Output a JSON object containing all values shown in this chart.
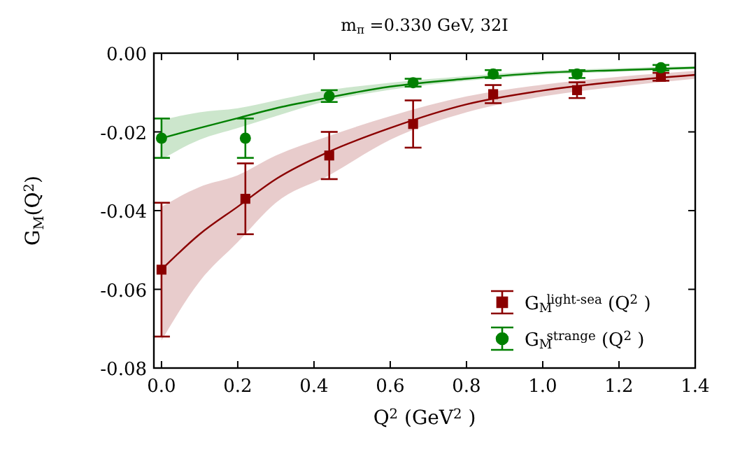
{
  "chart_data": {
    "type": "scatter",
    "title": "m$_{π}$ =0.330 GeV, 32I",
    "xlabel": "Q$^{2}$ (GeV$^{2}$ )",
    "ylabel": "G$_{M}$(Q$^{2}$)",
    "xlim": [
      -0.02,
      1.4
    ],
    "ylim": [
      -0.08,
      0.0
    ],
    "xticks": [
      {
        "value": 0,
        "label": "0.0"
      },
      0.2,
      0.4,
      0.6,
      0.8,
      {
        "value": 1,
        "label": "1.0"
      },
      1.2,
      1.4
    ],
    "yticks": [
      -0.08,
      -0.06,
      -0.04,
      -0.02,
      {
        "value": 0,
        "label": "0.00"
      }
    ],
    "legend": "bottom right",
    "grid": false,
    "series": [
      {
        "type": "line",
        "color": "#8b0000",
        "marker": "none",
        "x": [
          0,
          0.1,
          0.2,
          0.3,
          0.44,
          0.6,
          0.8,
          1.0,
          1.2,
          1.4
        ],
        "values": [
          -0.055,
          -0.046,
          -0.039,
          -0.032,
          -0.025,
          -0.019,
          -0.013,
          -0.0095,
          -0.0072,
          -0.0055
        ],
        "lower": [
          -0.073,
          -0.058,
          -0.048,
          -0.038,
          -0.031,
          -0.022,
          -0.015,
          -0.011,
          -0.0085,
          -0.0065
        ],
        "upper": [
          -0.039,
          -0.034,
          -0.031,
          -0.026,
          -0.021,
          -0.016,
          -0.011,
          -0.008,
          -0.006,
          -0.0045
        ]
      },
      {
        "type": "line",
        "color": "#008000",
        "marker": "none",
        "x": [
          0,
          0.1,
          0.2,
          0.3,
          0.4,
          0.6,
          0.8,
          1.0,
          1.2,
          1.4
        ],
        "values": [
          -0.0216,
          -0.019,
          -0.0165,
          -0.014,
          -0.012,
          -0.0085,
          -0.0065,
          -0.005,
          -0.0043,
          -0.0037
        ],
        "lower": [
          -0.027,
          -0.022,
          -0.019,
          -0.016,
          -0.013,
          -0.0093,
          -0.007,
          -0.0055,
          -0.0047,
          -0.004
        ],
        "upper": [
          -0.017,
          -0.015,
          -0.014,
          -0.012,
          -0.01,
          -0.0075,
          -0.0058,
          -0.0045,
          -0.0038,
          -0.0033
        ]
      },
      {
        "name": "G$_{M}$$^{light-sea}$ (Q$^{2}$ )",
        "color": "#8b0000",
        "marker": "square",
        "x": [
          0,
          0.22,
          0.44,
          0.66,
          0.87,
          1.09,
          1.31
        ],
        "values": [
          -0.055,
          -0.037,
          -0.026,
          -0.018,
          -0.0104,
          -0.0094,
          -0.006
        ],
        "errors": [
          0.017,
          0.009,
          0.006,
          0.006,
          0.0023,
          0.002,
          0.001
        ]
      },
      {
        "name": "G$_{M}$$^{strange}$ (Q$^{2}$ )",
        "color": "#008000",
        "marker": "circle",
        "x": [
          0,
          0.22,
          0.44,
          0.66,
          0.87,
          1.09,
          1.31
        ],
        "values": [
          -0.0216,
          -0.0216,
          -0.0109,
          -0.0075,
          -0.0053,
          -0.0053,
          -0.0037
        ],
        "errors": [
          0.005,
          0.005,
          0.0015,
          0.001,
          0.001,
          0.001,
          0.0007
        ]
      }
    ]
  }
}
